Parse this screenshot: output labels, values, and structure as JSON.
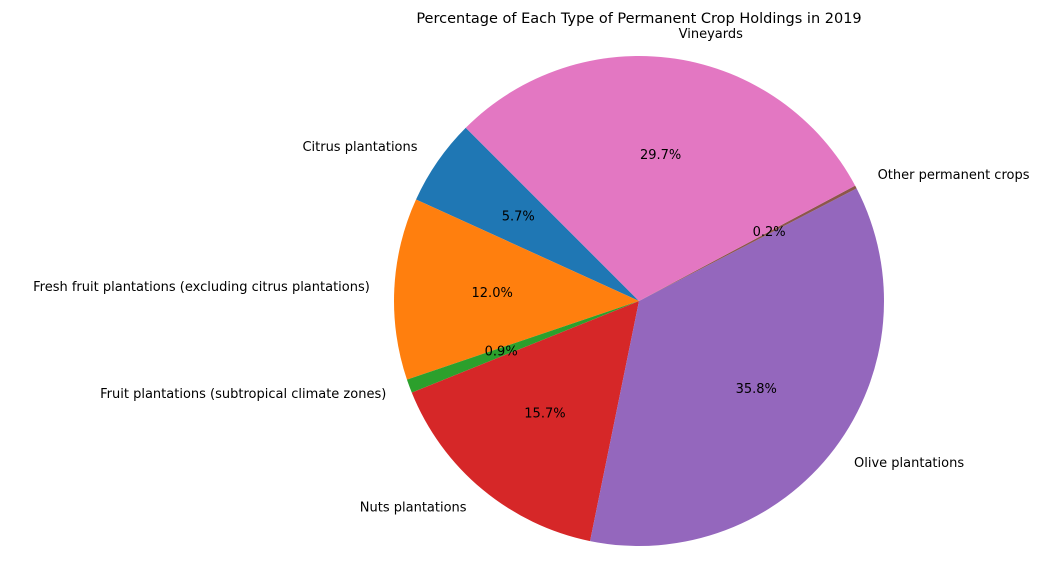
{
  "chart_data": {
    "type": "pie",
    "title": "Percentage of Each Type of Permanent Crop Holdings in 2019",
    "start_angle_deg": 135,
    "direction": "counterclockwise",
    "slices": [
      {
        "label": "Citrus plantations",
        "value": 5.7,
        "pct_label": "5.7%",
        "color": "#1f77b4"
      },
      {
        "label": "Fresh fruit plantations (excluding citrus plantations)",
        "value": 12.0,
        "pct_label": "12.0%",
        "color": "#ff7f0e"
      },
      {
        "label": "Fruit plantations (subtropical climate zones)",
        "value": 0.9,
        "pct_label": "0.9%",
        "color": "#2ca02c"
      },
      {
        "label": "Nuts plantations",
        "value": 15.7,
        "pct_label": "15.7%",
        "color": "#d62728"
      },
      {
        "label": "Olive plantations",
        "value": 35.8,
        "pct_label": "35.8%",
        "color": "#9467bd"
      },
      {
        "label": "Other permanent crops",
        "value": 0.2,
        "pct_label": "0.2%",
        "color": "#8c564b"
      },
      {
        "label": "Vineyards",
        "value": 29.7,
        "pct_label": "29.7%",
        "color": "#e377c2"
      }
    ]
  }
}
